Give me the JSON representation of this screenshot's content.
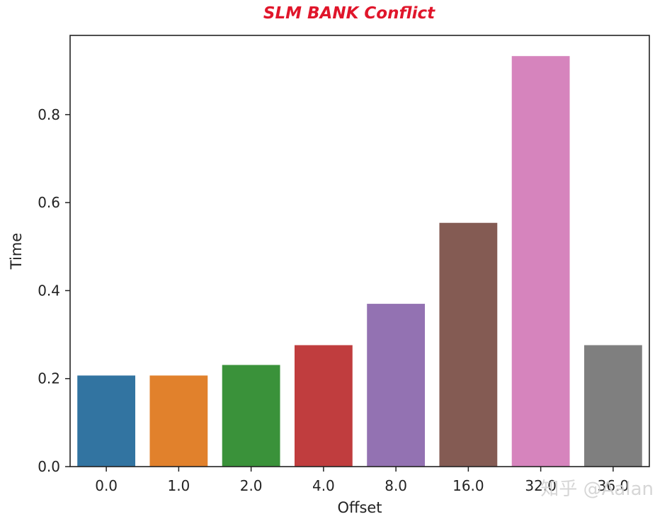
{
  "chart_data": {
    "type": "bar",
    "title": "SLM BANK Conflict",
    "xlabel": "Offset",
    "ylabel": "Time",
    "categories": [
      "0.0",
      "1.0",
      "2.0",
      "4.0",
      "8.0",
      "16.0",
      "32.0",
      "36.0"
    ],
    "values": [
      0.207,
      0.207,
      0.231,
      0.276,
      0.37,
      0.554,
      0.933,
      0.276
    ],
    "colors": [
      "#3274a1",
      "#e1812c",
      "#3a923a",
      "#c03d3e",
      "#9372b2",
      "#845b53",
      "#d684bd",
      "#7f7f7f"
    ],
    "ylim": [
      0,
      0.98
    ],
    "yticks": [
      0.0,
      0.2,
      0.4,
      0.6,
      0.8
    ],
    "ytick_labels": [
      "0.0",
      "0.2",
      "0.4",
      "0.6",
      "0.8"
    ],
    "grid": false,
    "legend": "none"
  },
  "watermark": "知乎 @Aalan",
  "colors": {
    "title": "#e0162b"
  }
}
